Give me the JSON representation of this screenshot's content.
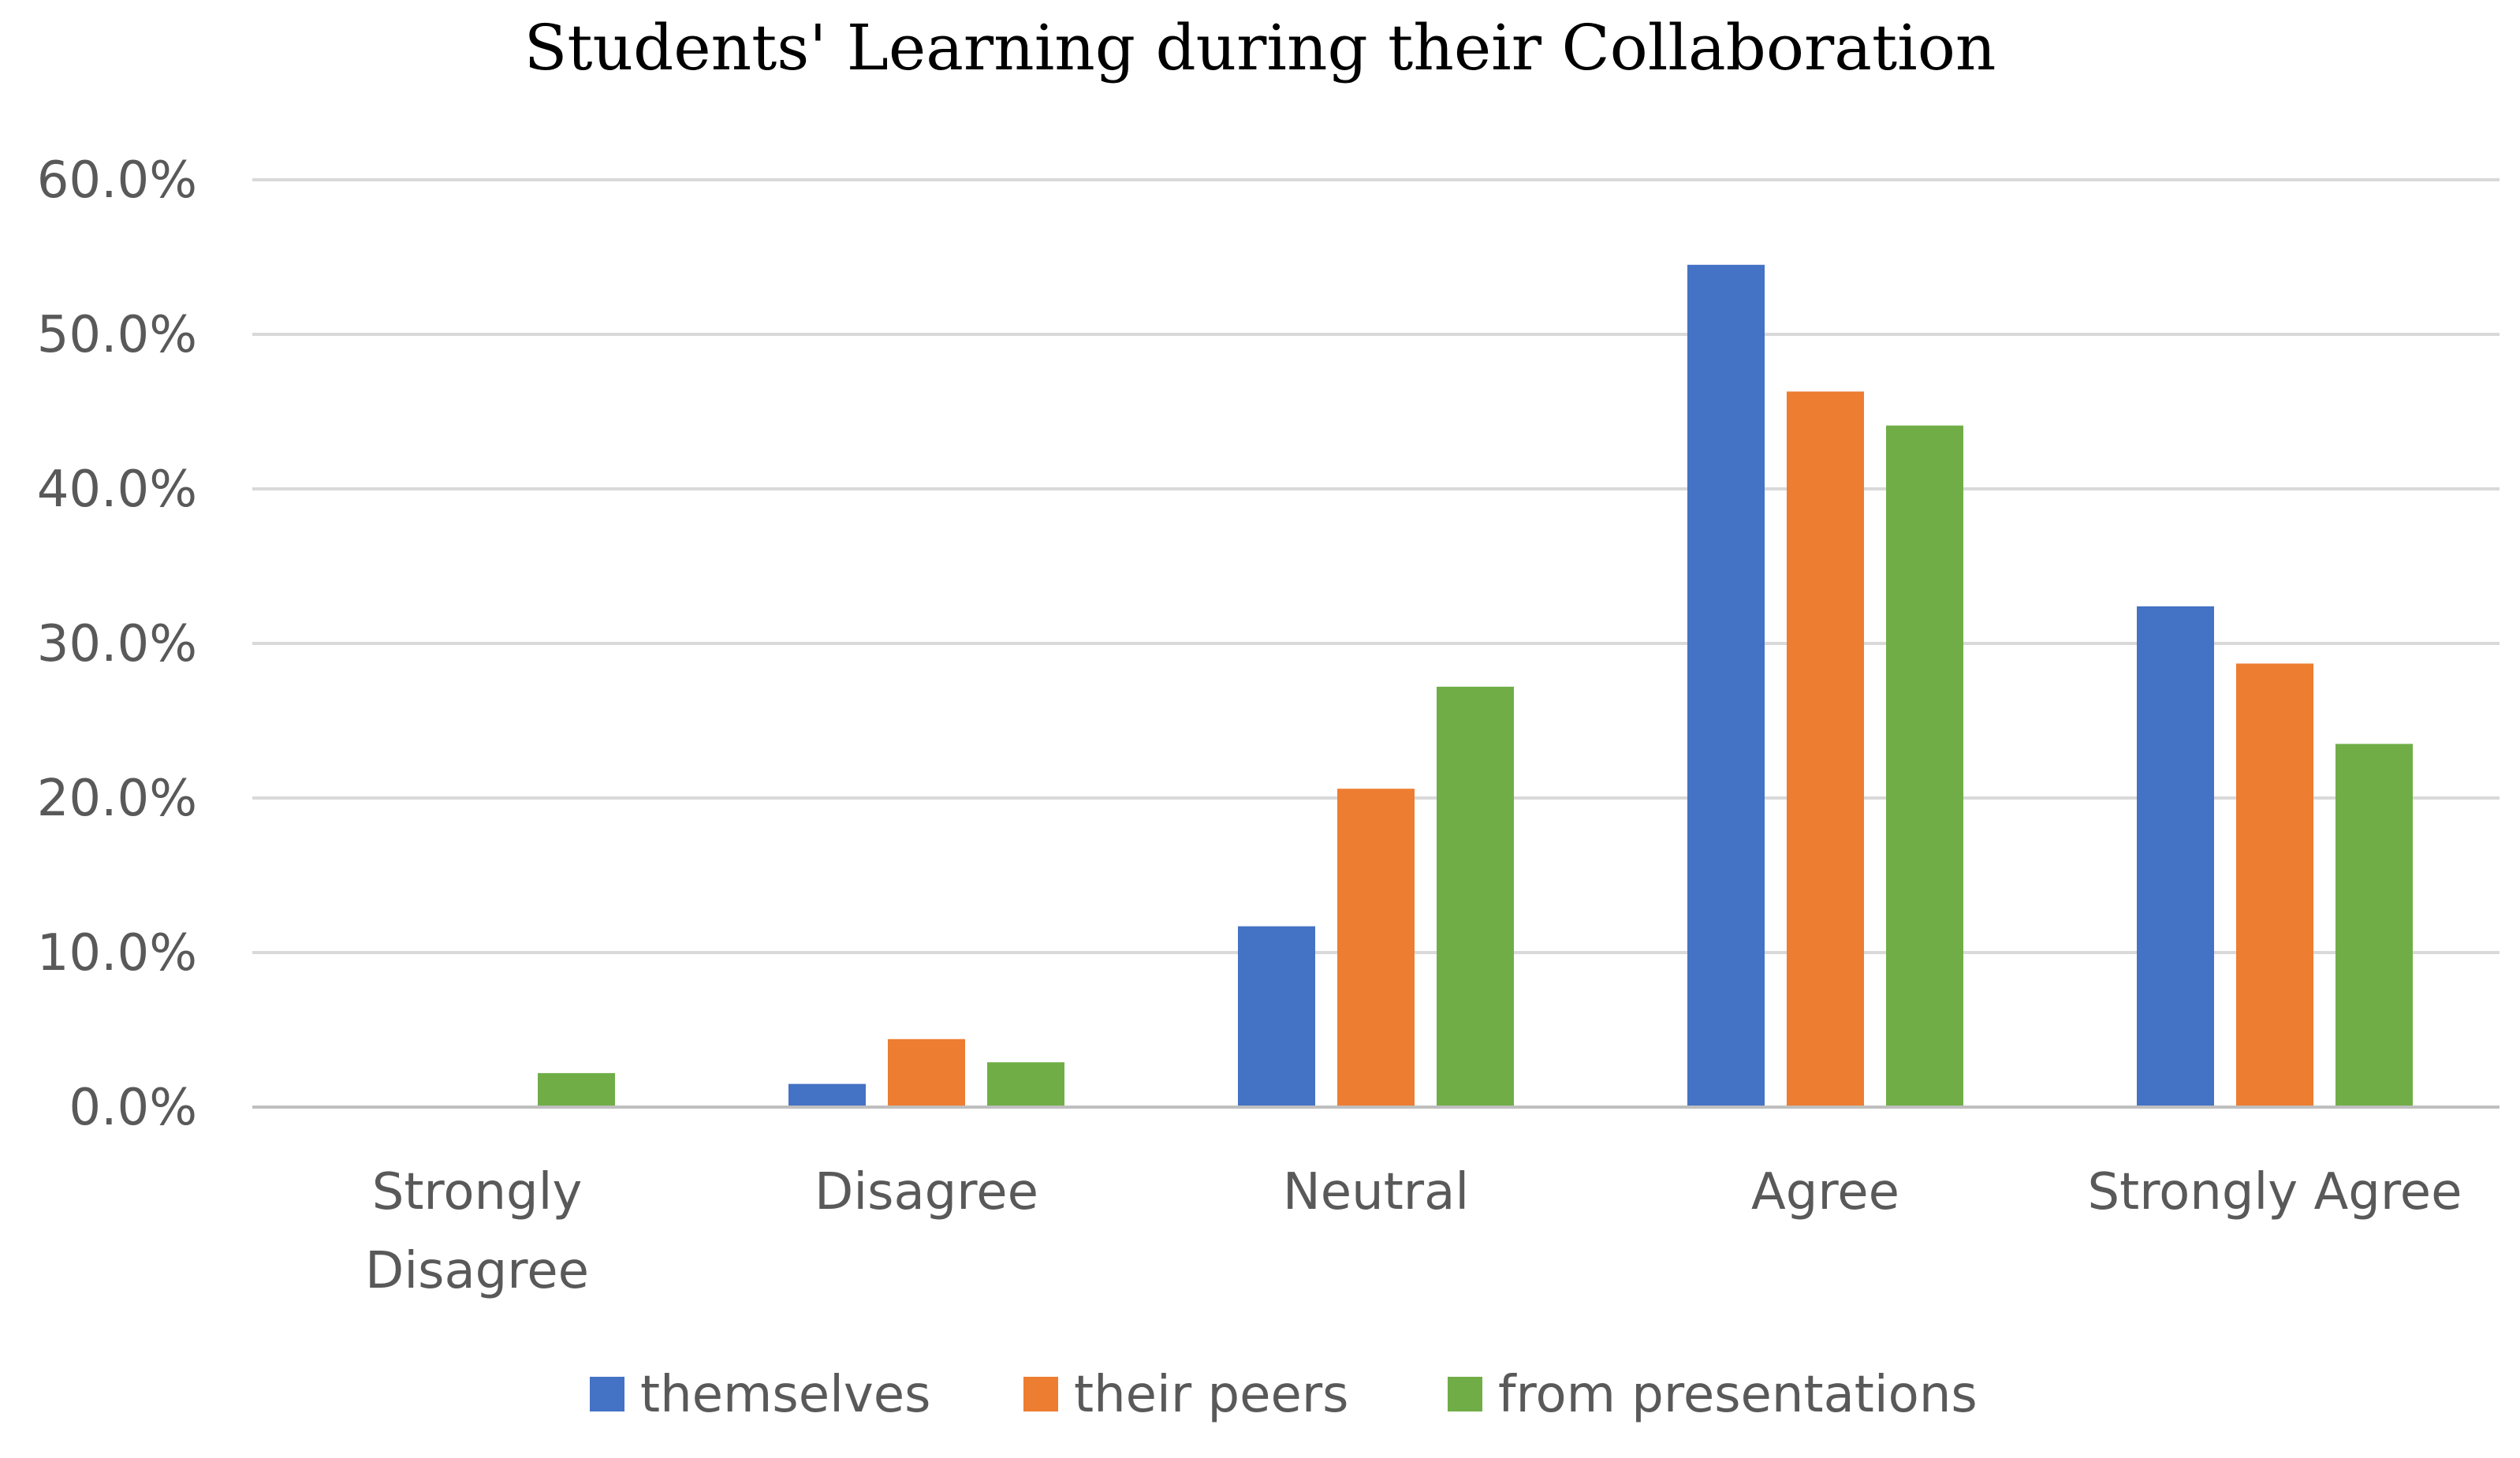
{
  "chart_data": {
    "type": "bar",
    "title": "Students' Learning during their Collaboration",
    "xlabel": "",
    "ylabel": "",
    "categories": [
      "Strongly Disagree",
      "Disagree",
      "Neutral",
      "Agree",
      "Strongly Agree"
    ],
    "category_label_lines": [
      [
        "Strongly",
        "Disagree"
      ],
      [
        "Disagree"
      ],
      [
        "Neutral"
      ],
      [
        "Agree"
      ],
      [
        "Strongly Agree"
      ]
    ],
    "series": [
      {
        "name": "themselves",
        "color": "#4472c4",
        "values": [
          0.0,
          1.5,
          11.7,
          54.5,
          32.4
        ]
      },
      {
        "name": "their peers",
        "color": "#ed7d31",
        "values": [
          0.0,
          4.4,
          20.6,
          46.3,
          28.7
        ]
      },
      {
        "name": "from presentations",
        "color": "#70ad47",
        "values": [
          2.2,
          2.9,
          27.2,
          44.1,
          23.5
        ]
      }
    ],
    "ylim": [
      0,
      60
    ],
    "yticks": [
      0,
      10,
      20,
      30,
      40,
      50,
      60
    ],
    "ytick_labels": [
      "0.0%",
      "10.0%",
      "20.0%",
      "30.0%",
      "40.0%",
      "50.0%",
      "60.0%"
    ],
    "grid": true,
    "legend_position": "bottom"
  }
}
